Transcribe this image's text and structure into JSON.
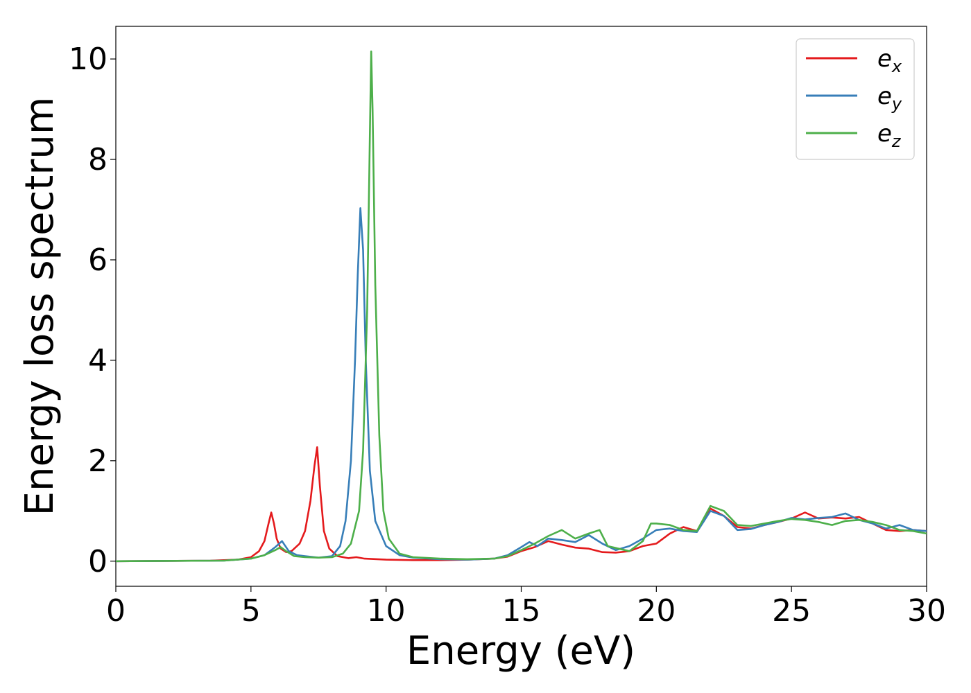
{
  "chart_data": {
    "type": "line",
    "title": "",
    "xlabel": "Energy (eV)",
    "ylabel": "Energy loss spectrum",
    "xlim": [
      0,
      30
    ],
    "ylim": [
      -0.5,
      10.65
    ],
    "xticks": [
      0,
      5,
      10,
      15,
      20,
      25,
      30
    ],
    "yticks": [
      0,
      2,
      4,
      6,
      8,
      10
    ],
    "grid": false,
    "legend_position": "top-right",
    "series": [
      {
        "name": "e_x",
        "label_main": "e",
        "label_sub": "x",
        "color": "#e41a1c",
        "x": [
          0,
          3.5,
          4.5,
          5.0,
          5.3,
          5.5,
          5.65,
          5.75,
          5.85,
          5.95,
          6.1,
          6.3,
          6.5,
          6.8,
          7.0,
          7.2,
          7.35,
          7.45,
          7.55,
          7.7,
          7.9,
          8.2,
          8.6,
          8.9,
          9.2,
          10,
          11,
          12,
          13,
          14,
          14.5,
          15,
          15.5,
          16,
          16.5,
          17,
          17.5,
          18,
          18.5,
          19,
          19.5,
          20,
          20.5,
          21,
          21.5,
          22,
          22.5,
          23,
          23.5,
          24,
          24.5,
          25,
          25.5,
          26,
          26.5,
          27,
          27.5,
          28,
          28.5,
          29,
          29.5,
          30
        ],
        "y": [
          0,
          0.01,
          0.03,
          0.08,
          0.2,
          0.4,
          0.75,
          0.97,
          0.75,
          0.45,
          0.25,
          0.18,
          0.2,
          0.35,
          0.6,
          1.2,
          1.9,
          2.27,
          1.5,
          0.6,
          0.25,
          0.1,
          0.06,
          0.08,
          0.05,
          0.03,
          0.02,
          0.02,
          0.03,
          0.05,
          0.09,
          0.2,
          0.28,
          0.4,
          0.33,
          0.27,
          0.25,
          0.18,
          0.17,
          0.2,
          0.3,
          0.35,
          0.55,
          0.68,
          0.6,
          1.05,
          0.9,
          0.68,
          0.65,
          0.72,
          0.78,
          0.85,
          0.97,
          0.85,
          0.87,
          0.85,
          0.88,
          0.75,
          0.62,
          0.6,
          0.62,
          0.6
        ]
      },
      {
        "name": "e_y",
        "label_main": "e",
        "label_sub": "y",
        "color": "#377eb8",
        "x": [
          0,
          4.0,
          5.0,
          5.5,
          5.9,
          6.15,
          6.4,
          6.7,
          7.0,
          7.5,
          8.0,
          8.3,
          8.5,
          8.7,
          8.85,
          8.95,
          9.05,
          9.15,
          9.25,
          9.4,
          9.6,
          10.0,
          10.5,
          11,
          12,
          13,
          14,
          14.5,
          15,
          15.3,
          15.6,
          16,
          16.5,
          17,
          17.5,
          18,
          18.5,
          19,
          19.5,
          20,
          20.5,
          21,
          21.5,
          22,
          22.5,
          23,
          23.5,
          24,
          24.5,
          25,
          25.5,
          26,
          26.5,
          27,
          27.5,
          28,
          28.5,
          29,
          29.5,
          30
        ],
        "y": [
          0,
          0.01,
          0.05,
          0.12,
          0.28,
          0.4,
          0.2,
          0.12,
          0.1,
          0.07,
          0.1,
          0.3,
          0.8,
          2.0,
          4.0,
          5.7,
          7.03,
          6.2,
          4.0,
          1.8,
          0.8,
          0.3,
          0.12,
          0.07,
          0.04,
          0.03,
          0.05,
          0.12,
          0.28,
          0.38,
          0.3,
          0.45,
          0.42,
          0.38,
          0.52,
          0.35,
          0.22,
          0.3,
          0.45,
          0.62,
          0.65,
          0.6,
          0.58,
          1.0,
          0.9,
          0.62,
          0.64,
          0.72,
          0.78,
          0.86,
          0.83,
          0.86,
          0.88,
          0.95,
          0.82,
          0.75,
          0.65,
          0.72,
          0.62,
          0.6
        ]
      },
      {
        "name": "e_z",
        "label_main": "e",
        "label_sub": "z",
        "color": "#4daf4a",
        "x": [
          0,
          4.0,
          5.0,
          5.5,
          5.9,
          6.1,
          6.3,
          6.6,
          7.0,
          7.5,
          8.0,
          8.4,
          8.7,
          9.0,
          9.15,
          9.3,
          9.4,
          9.45,
          9.5,
          9.6,
          9.75,
          9.9,
          10.1,
          10.5,
          11,
          12,
          13,
          14,
          14.5,
          15,
          15.5,
          16,
          16.5,
          17,
          17.5,
          17.9,
          18.2,
          18.6,
          19,
          19.5,
          19.8,
          20,
          20.5,
          21,
          21.5,
          22,
          22.5,
          23,
          23.5,
          24,
          24.5,
          25,
          25.5,
          26,
          26.5,
          27,
          27.5,
          28,
          28.5,
          29,
          29.5,
          30
        ],
        "y": [
          0,
          0.01,
          0.05,
          0.12,
          0.22,
          0.28,
          0.2,
          0.1,
          0.08,
          0.07,
          0.08,
          0.15,
          0.35,
          1.0,
          2.2,
          5.0,
          8.5,
          10.15,
          9.0,
          5.5,
          2.5,
          1.0,
          0.45,
          0.15,
          0.08,
          0.05,
          0.04,
          0.05,
          0.1,
          0.22,
          0.35,
          0.5,
          0.62,
          0.45,
          0.55,
          0.62,
          0.3,
          0.25,
          0.2,
          0.4,
          0.75,
          0.75,
          0.72,
          0.62,
          0.6,
          1.1,
          1.0,
          0.72,
          0.7,
          0.75,
          0.8,
          0.84,
          0.82,
          0.78,
          0.72,
          0.8,
          0.82,
          0.78,
          0.72,
          0.62,
          0.6,
          0.55
        ]
      }
    ]
  }
}
